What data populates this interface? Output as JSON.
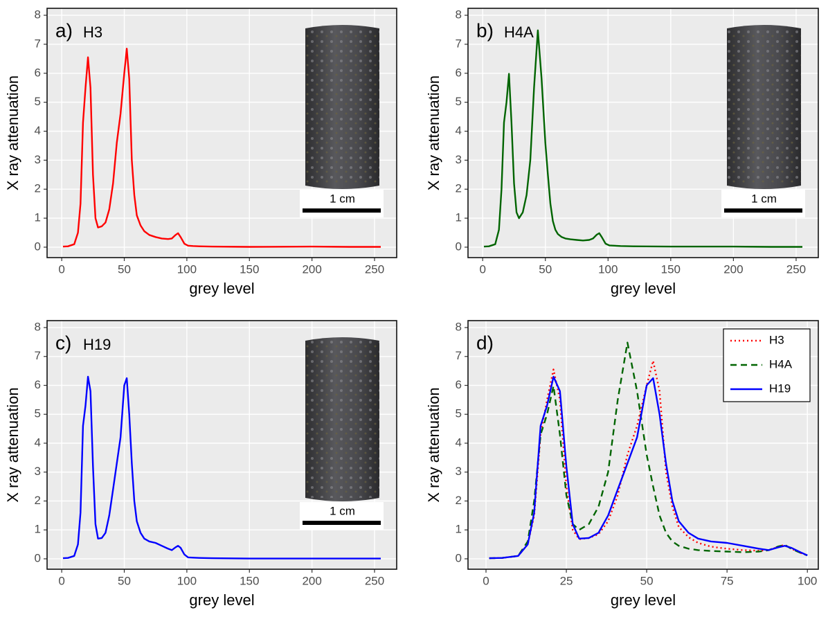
{
  "chart_data": [
    {
      "type": "line",
      "tag": "a)",
      "title": "H3",
      "annotation": "1 cm",
      "xlabel": "grey level",
      "ylabel": "X ray attenuation",
      "x": [
        1,
        5,
        10,
        13,
        15,
        17,
        19,
        21,
        23,
        25,
        27,
        29,
        32,
        35,
        38,
        41,
        44,
        47,
        50,
        52,
        54,
        56,
        58,
        60,
        63,
        66,
        70,
        75,
        80,
        85,
        88,
        91,
        93,
        95,
        98,
        101,
        105,
        110,
        120,
        150,
        200,
        230,
        255
      ],
      "values": [
        0.02,
        0.03,
        0.1,
        0.5,
        1.5,
        4.3,
        5.5,
        6.55,
        5.5,
        2.5,
        1.0,
        0.68,
        0.72,
        0.85,
        1.3,
        2.2,
        3.6,
        4.6,
        6.0,
        6.85,
        5.8,
        3.0,
        1.8,
        1.1,
        0.75,
        0.55,
        0.42,
        0.35,
        0.3,
        0.28,
        0.3,
        0.42,
        0.48,
        0.35,
        0.12,
        0.05,
        0.04,
        0.03,
        0.02,
        0.01,
        0.02,
        0.01,
        0.01
      ],
      "color": "#ff0000",
      "xlim": [
        -11.7,
        267.7
      ],
      "ylim": [
        -0.36,
        8.24
      ],
      "xticks": [
        0,
        50,
        100,
        150,
        200,
        250
      ],
      "yticks": [
        0,
        1,
        2,
        3,
        4,
        5,
        6,
        7,
        8
      ],
      "grid": true
    },
    {
      "type": "line",
      "tag": "b)",
      "title": "H4A",
      "annotation": "1 cm",
      "xlabel": "grey level",
      "ylabel": "X ray attenuation",
      "x": [
        1,
        5,
        10,
        13,
        15,
        17,
        19,
        21,
        23,
        25,
        27,
        29,
        32,
        35,
        38,
        41,
        44,
        47,
        50,
        52,
        54,
        56,
        58,
        60,
        63,
        66,
        70,
        75,
        80,
        85,
        88,
        91,
        93,
        95,
        98,
        101,
        105,
        110,
        120,
        150,
        200,
        230,
        255
      ],
      "values": [
        0.02,
        0.03,
        0.1,
        0.6,
        2.0,
        4.3,
        5.0,
        5.98,
        4.3,
        2.2,
        1.2,
        1.0,
        1.2,
        1.8,
        3.0,
        5.5,
        7.48,
        5.8,
        3.6,
        2.5,
        1.5,
        0.9,
        0.6,
        0.45,
        0.35,
        0.3,
        0.27,
        0.25,
        0.23,
        0.25,
        0.3,
        0.43,
        0.48,
        0.35,
        0.12,
        0.06,
        0.05,
        0.04,
        0.03,
        0.02,
        0.02,
        0.01,
        0.01
      ],
      "color": "#006400",
      "xlim": [
        -11.7,
        267.7
      ],
      "ylim": [
        -0.36,
        8.24
      ],
      "xticks": [
        0,
        50,
        100,
        150,
        200,
        250
      ],
      "yticks": [
        0,
        1,
        2,
        3,
        4,
        5,
        6,
        7,
        8
      ],
      "grid": true
    },
    {
      "type": "line",
      "tag": "c)",
      "title": "H19",
      "annotation": "1 cm",
      "xlabel": "grey level",
      "ylabel": "X ray attenuation",
      "x": [
        1,
        5,
        10,
        13,
        15,
        17,
        19,
        21,
        23,
        25,
        27,
        29,
        32,
        35,
        38,
        41,
        44,
        47,
        50,
        52,
        54,
        56,
        58,
        60,
        63,
        66,
        70,
        75,
        80,
        85,
        88,
        91,
        93,
        95,
        98,
        101,
        105,
        110,
        120,
        150,
        200,
        230,
        255
      ],
      "values": [
        0.02,
        0.03,
        0.1,
        0.5,
        1.6,
        4.6,
        5.3,
        6.3,
        5.8,
        3.2,
        1.2,
        0.7,
        0.72,
        0.9,
        1.5,
        2.4,
        3.3,
        4.2,
        6.0,
        6.25,
        5.0,
        3.3,
        2.0,
        1.3,
        0.9,
        0.7,
        0.6,
        0.55,
        0.45,
        0.35,
        0.3,
        0.4,
        0.45,
        0.38,
        0.15,
        0.05,
        0.04,
        0.03,
        0.02,
        0.01,
        0.01,
        0.01,
        0.01
      ],
      "color": "#0000ff",
      "xlim": [
        -11.7,
        267.7
      ],
      "ylim": [
        -0.36,
        8.24
      ],
      "xticks": [
        0,
        50,
        100,
        150,
        200,
        250
      ],
      "yticks": [
        0,
        1,
        2,
        3,
        4,
        5,
        6,
        7,
        8
      ],
      "grid": true
    },
    {
      "type": "multiline",
      "tag": "d)",
      "xlabel": "grey level",
      "ylabel": "X ray attenuation",
      "legend": "top-right",
      "x": [
        1,
        5,
        10,
        13,
        15,
        17,
        19,
        21,
        23,
        25,
        27,
        29,
        32,
        35,
        38,
        41,
        44,
        47,
        50,
        52,
        54,
        56,
        58,
        60,
        63,
        66,
        70,
        75,
        80,
        85,
        88,
        91,
        93,
        95,
        98,
        100
      ],
      "series": [
        {
          "name": "H3",
          "color": "#ff0000",
          "dash": "dotted",
          "values": [
            0.02,
            0.03,
            0.1,
            0.5,
            1.5,
            4.3,
            5.5,
            6.55,
            5.5,
            2.5,
            1.0,
            0.68,
            0.72,
            0.85,
            1.3,
            2.2,
            3.6,
            4.6,
            6.0,
            6.85,
            5.8,
            3.0,
            1.8,
            1.1,
            0.75,
            0.55,
            0.42,
            0.35,
            0.3,
            0.28,
            0.3,
            0.42,
            0.48,
            0.35,
            0.2,
            0.12
          ]
        },
        {
          "name": "H4A",
          "color": "#006400",
          "dash": "dashed",
          "values": [
            0.02,
            0.03,
            0.1,
            0.6,
            2.0,
            4.3,
            5.0,
            5.98,
            4.3,
            2.2,
            1.2,
            1.0,
            1.2,
            1.8,
            3.0,
            5.5,
            7.48,
            5.8,
            3.6,
            2.5,
            1.5,
            0.9,
            0.6,
            0.45,
            0.35,
            0.3,
            0.27,
            0.25,
            0.23,
            0.25,
            0.3,
            0.43,
            0.48,
            0.35,
            0.2,
            0.12
          ]
        },
        {
          "name": "H19",
          "color": "#0000ff",
          "dash": "solid",
          "values": [
            0.02,
            0.03,
            0.1,
            0.5,
            1.6,
            4.6,
            5.3,
            6.3,
            5.8,
            3.2,
            1.2,
            0.7,
            0.72,
            0.9,
            1.5,
            2.4,
            3.3,
            4.2,
            6.0,
            6.25,
            5.0,
            3.3,
            2.0,
            1.3,
            0.9,
            0.7,
            0.6,
            0.55,
            0.45,
            0.35,
            0.3,
            0.4,
            0.45,
            0.38,
            0.22,
            0.12
          ]
        }
      ],
      "xlim": [
        -5.6,
        103.4
      ],
      "ylim": [
        -0.36,
        8.24
      ],
      "xticks": [
        0,
        25,
        50,
        75,
        100
      ],
      "yticks": [
        0,
        1,
        2,
        3,
        4,
        5,
        6,
        7,
        8
      ],
      "grid": true
    }
  ]
}
